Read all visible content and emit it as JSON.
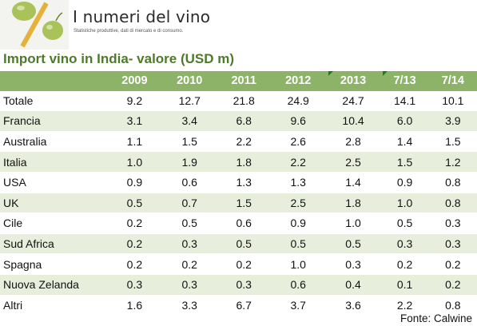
{
  "header": {
    "logo_title": "I numeri del vino",
    "logo_subtitle": "Statistiche produttive, dati di mercato e di consumo."
  },
  "chart_data": {
    "type": "table",
    "title": "Import vino  in India- valore (USD m)",
    "columns": [
      "2009",
      "2010",
      "2011",
      "2012",
      "2013",
      "7/13",
      "7/14"
    ],
    "rows": [
      {
        "label": "Totale",
        "values": [
          "9.2",
          "12.7",
          "21.8",
          "24.9",
          "24.7",
          "14.1",
          "10.1"
        ]
      },
      {
        "label": "Francia",
        "values": [
          "3.1",
          "3.4",
          "6.8",
          "9.6",
          "10.4",
          "6.0",
          "3.9"
        ]
      },
      {
        "label": "Australia",
        "values": [
          "1.1",
          "1.5",
          "2.2",
          "2.6",
          "2.8",
          "1.4",
          "1.5"
        ]
      },
      {
        "label": "Italia",
        "values": [
          "1.0",
          "1.9",
          "1.8",
          "2.2",
          "2.5",
          "1.5",
          "1.2"
        ]
      },
      {
        "label": "USA",
        "values": [
          "0.9",
          "0.6",
          "1.3",
          "1.3",
          "1.4",
          "0.9",
          "0.8"
        ]
      },
      {
        "label": "UK",
        "values": [
          "0.5",
          "0.7",
          "1.5",
          "2.5",
          "1.8",
          "1.0",
          "0.8"
        ]
      },
      {
        "label": "Cile",
        "values": [
          "0.2",
          "0.5",
          "0.6",
          "0.9",
          "1.0",
          "0.5",
          "0.3"
        ]
      },
      {
        "label": "Sud Africa",
        "values": [
          "0.2",
          "0.3",
          "0.5",
          "0.5",
          "0.5",
          "0.3",
          "0.3"
        ]
      },
      {
        "label": "Spagna",
        "values": [
          "0.2",
          "0.2",
          "0.2",
          "1.0",
          "0.3",
          "0.2",
          "0.2"
        ]
      },
      {
        "label": "Nuova Zelanda",
        "values": [
          "0.3",
          "0.3",
          "0.3",
          "0.6",
          "0.4",
          "0.1",
          "0.2"
        ]
      },
      {
        "label": "Altri",
        "values": [
          "1.6",
          "3.3",
          "6.7",
          "3.7",
          "3.6",
          "2.2",
          "0.8"
        ]
      }
    ],
    "source": "Fonte: Calwine"
  },
  "colors": {
    "header_bg": "#8db368",
    "row_alt": "#e7efdc",
    "title": "#4f7a2b"
  }
}
